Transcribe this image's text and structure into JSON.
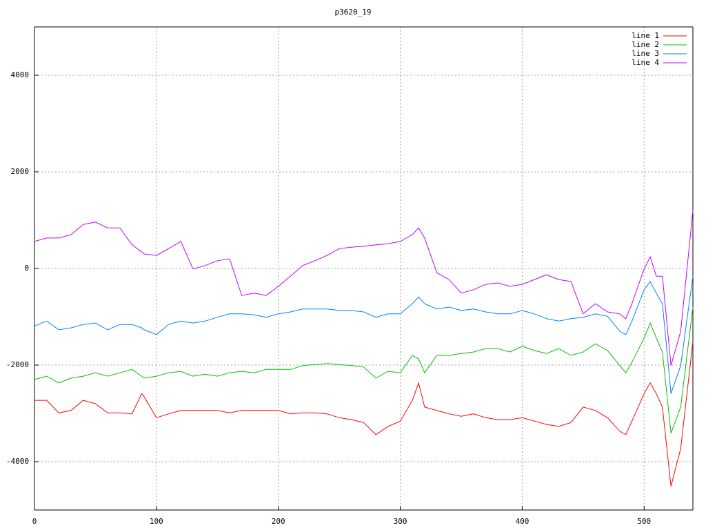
{
  "chart_data": {
    "type": "line",
    "title": "p3620_19",
    "x": [
      0,
      10,
      20,
      30,
      40,
      50,
      60,
      70,
      80,
      88,
      90,
      100,
      110,
      120,
      130,
      140,
      150,
      160,
      170,
      180,
      190,
      200,
      210,
      220,
      230,
      240,
      250,
      260,
      270,
      280,
      290,
      300,
      310,
      315,
      320,
      330,
      340,
      350,
      360,
      370,
      380,
      390,
      400,
      410,
      420,
      430,
      440,
      450,
      460,
      470,
      480,
      485,
      490,
      500,
      505,
      510,
      515,
      522,
      530,
      540
    ],
    "series": [
      {
        "name": "line 1",
        "color": "#ff0000",
        "values": [
          -2730,
          -2730,
          -2990,
          -2940,
          -2730,
          -2800,
          -2990,
          -2990,
          -3010,
          -2590,
          -2660,
          -3090,
          -3010,
          -2940,
          -2940,
          -2940,
          -2940,
          -2990,
          -2940,
          -2940,
          -2940,
          -2940,
          -3010,
          -2990,
          -2990,
          -3010,
          -3090,
          -3130,
          -3190,
          -3440,
          -3270,
          -3160,
          -2730,
          -2370,
          -2870,
          -2940,
          -3010,
          -3060,
          -3010,
          -3090,
          -3130,
          -3130,
          -3090,
          -3160,
          -3230,
          -3270,
          -3190,
          -2870,
          -2940,
          -3090,
          -3370,
          -3440,
          -3160,
          -2590,
          -2370,
          -2590,
          -2870,
          -4510,
          -3730,
          -1510
        ]
      },
      {
        "name": "line 2",
        "color": "#00c000",
        "values": [
          -2300,
          -2230,
          -2370,
          -2270,
          -2230,
          -2160,
          -2230,
          -2160,
          -2090,
          -2230,
          -2270,
          -2230,
          -2160,
          -2130,
          -2230,
          -2190,
          -2230,
          -2160,
          -2130,
          -2160,
          -2090,
          -2090,
          -2090,
          -2010,
          -1990,
          -1970,
          -1990,
          -2010,
          -2040,
          -2270,
          -2130,
          -2160,
          -1800,
          -1870,
          -2160,
          -1800,
          -1800,
          -1760,
          -1730,
          -1660,
          -1660,
          -1730,
          -1610,
          -1700,
          -1760,
          -1660,
          -1800,
          -1730,
          -1560,
          -1700,
          -2010,
          -2160,
          -1940,
          -1440,
          -1130,
          -1440,
          -1730,
          -3410,
          -2870,
          -800
        ]
      },
      {
        "name": "line 3",
        "color": "#0080ff",
        "values": [
          -1190,
          -1090,
          -1270,
          -1230,
          -1160,
          -1130,
          -1270,
          -1160,
          -1160,
          -1230,
          -1270,
          -1370,
          -1160,
          -1090,
          -1130,
          -1090,
          -1010,
          -940,
          -940,
          -960,
          -1010,
          -940,
          -900,
          -840,
          -840,
          -840,
          -870,
          -870,
          -900,
          -1010,
          -940,
          -940,
          -730,
          -590,
          -730,
          -840,
          -800,
          -870,
          -840,
          -900,
          -940,
          -940,
          -870,
          -940,
          -1040,
          -1090,
          -1040,
          -1010,
          -940,
          -990,
          -1300,
          -1370,
          -1090,
          -440,
          -270,
          -510,
          -730,
          -2590,
          -2010,
          -160
        ]
      },
      {
        "name": "line 4",
        "color": "#c000ff",
        "values": [
          560,
          630,
          630,
          700,
          910,
          960,
          840,
          840,
          490,
          340,
          300,
          270,
          410,
          560,
          -10,
          60,
          160,
          200,
          -560,
          -510,
          -560,
          -370,
          -160,
          60,
          160,
          270,
          410,
          440,
          460,
          490,
          510,
          560,
          700,
          840,
          630,
          -90,
          -230,
          -510,
          -440,
          -330,
          -300,
          -370,
          -330,
          -230,
          -130,
          -230,
          -270,
          -940,
          -730,
          -900,
          -940,
          -1040,
          -730,
          -10,
          240,
          -160,
          -160,
          -2010,
          -1300,
          1200
        ]
      }
    ],
    "xlim": [
      0,
      540
    ],
    "ylim": [
      -5000,
      5000
    ],
    "xticks": [
      0,
      100,
      200,
      300,
      400,
      500
    ],
    "yticks": [
      -4000,
      -2000,
      0,
      2000,
      4000
    ],
    "grid": true,
    "legend": "top-right"
  }
}
